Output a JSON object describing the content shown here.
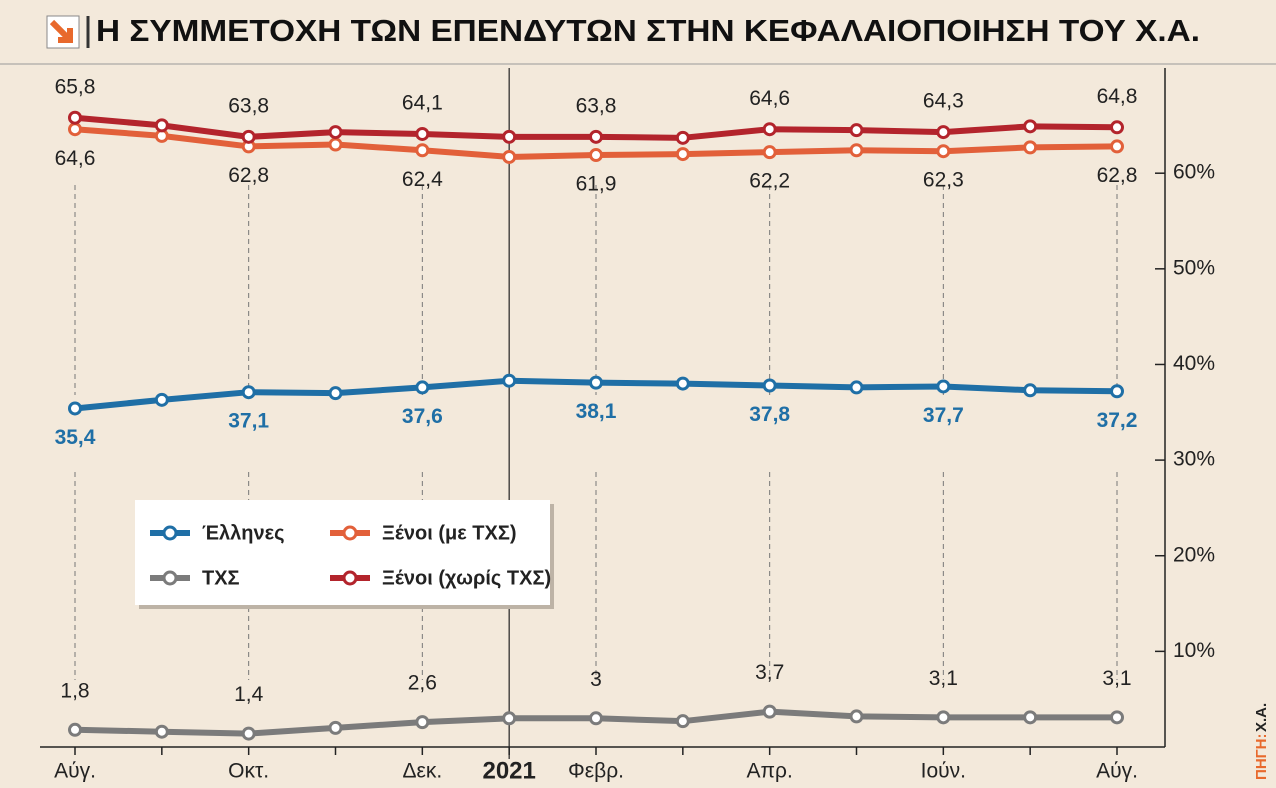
{
  "chart_data": {
    "type": "line",
    "title": "Η ΣΥΜΜΕΤΟΧΗ ΤΩΝ ΕΠΕΝΔΥΤΩΝ ΣΤΗΝ ΚΕΦΑΛΑΙΟΠΟΙΗΣΗ ΤΟΥ Χ.Α.",
    "source_label": "ΠΗΓΗ:",
    "source": "Χ.Α.",
    "categories": [
      "Αύγ.",
      null,
      "Οκτ.",
      null,
      "Δεκ.",
      "2021",
      "Φεβρ.",
      null,
      "Απρ.",
      null,
      "Ιούν.",
      null,
      "Αύγ."
    ],
    "ylim": [
      0,
      71
    ],
    "yticks": [
      {
        "value": 10,
        "label": "10%"
      },
      {
        "value": 20,
        "label": "20%"
      },
      {
        "value": 30,
        "label": "30%"
      },
      {
        "value": 40,
        "label": "40%"
      },
      {
        "value": 50,
        "label": "50%"
      },
      {
        "value": 60,
        "label": "60%"
      }
    ],
    "legend": "center-left",
    "series": [
      {
        "name": "Έλληνες",
        "color": "#1f6fa6",
        "values": [
          35.4,
          36.3,
          37.1,
          37.0,
          37.6,
          38.3,
          38.1,
          38.0,
          37.8,
          37.6,
          37.7,
          37.3,
          37.2
        ],
        "value_labels": [
          "35,4",
          null,
          "37,1",
          null,
          "37,6",
          null,
          "38,1",
          null,
          "37,8",
          null,
          "37,7",
          null,
          "37,2"
        ]
      },
      {
        "name": "Ξένοι (με ΤΧΣ)",
        "color": "#e2603a",
        "values": [
          64.6,
          63.9,
          62.8,
          63.0,
          62.4,
          61.7,
          61.9,
          62.0,
          62.2,
          62.4,
          62.3,
          62.7,
          62.8
        ],
        "value_labels": [
          "64,6",
          null,
          "62,8",
          null,
          "62,4",
          null,
          "61,9",
          null,
          "62,2",
          null,
          "62,3",
          null,
          "62,8"
        ]
      },
      {
        "name": "ΤΧΣ",
        "color": "#7b7b7b",
        "values": [
          1.8,
          1.6,
          1.4,
          2.0,
          2.6,
          3.0,
          3.0,
          2.7,
          3.7,
          3.2,
          3.1,
          3.1,
          3.1
        ],
        "value_labels": [
          "1,8",
          null,
          "1,4",
          null,
          "2,6",
          null,
          "3",
          null,
          "3,7",
          null,
          "3,1",
          null,
          "3,1"
        ]
      },
      {
        "name": "Ξένοι (χωρίς ΤΧΣ)",
        "color": "#b3242c",
        "values": [
          65.8,
          65.0,
          63.8,
          64.3,
          64.1,
          63.8,
          63.8,
          63.7,
          64.6,
          64.5,
          64.3,
          64.9,
          64.8
        ],
        "value_labels": [
          "65,8",
          null,
          "63,8",
          null,
          "64,1",
          null,
          "63,8",
          null,
          "64,6",
          null,
          "64,3",
          null,
          "64,8"
        ]
      }
    ]
  }
}
